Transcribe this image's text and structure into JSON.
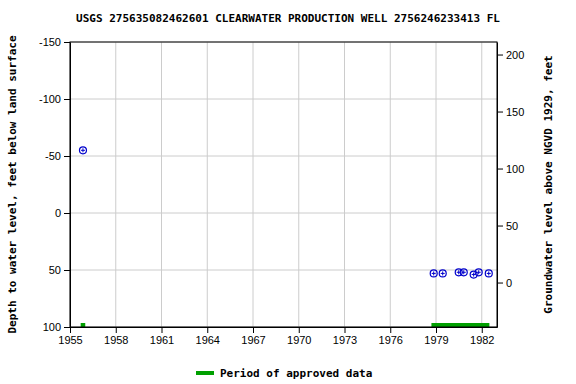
{
  "chart_data": {
    "type": "scatter",
    "title": "USGS 275635082462601 CLEARWATER PRODUCTION WELL 2756246233413 FL",
    "y_label": "Depth to water level, feet below land surface",
    "y2_label": "Groundwater level above NGVD 1929, feet",
    "xlim": [
      1955,
      1983
    ],
    "xticks": [
      1955,
      1958,
      1961,
      1964,
      1967,
      1970,
      1973,
      1976,
      1979,
      1982
    ],
    "ylim": [
      100,
      -150
    ],
    "yticks": [
      -150,
      -100,
      -50,
      0,
      50,
      100
    ],
    "y2lim": [
      -39,
      211
    ],
    "y2ticks": [
      0,
      50,
      100,
      150,
      200
    ],
    "grid": true,
    "legend": "bottom",
    "series": [
      {
        "type": "scatter",
        "color": "#0000cc",
        "marker": "circle",
        "x": [
          1955.85,
          1978.85,
          1979.44,
          1980.49,
          1980.82,
          1981.47,
          1981.8,
          1982.46
        ],
        "values": [
          -55,
          53,
          53,
          52,
          52,
          54,
          52,
          53
        ]
      },
      {
        "name": "Period of approved data",
        "type": "period",
        "color": "#00a000",
        "starts": [
          1955.7,
          1978.7
        ],
        "ends": [
          1956.0,
          1982.5
        ]
      }
    ]
  }
}
